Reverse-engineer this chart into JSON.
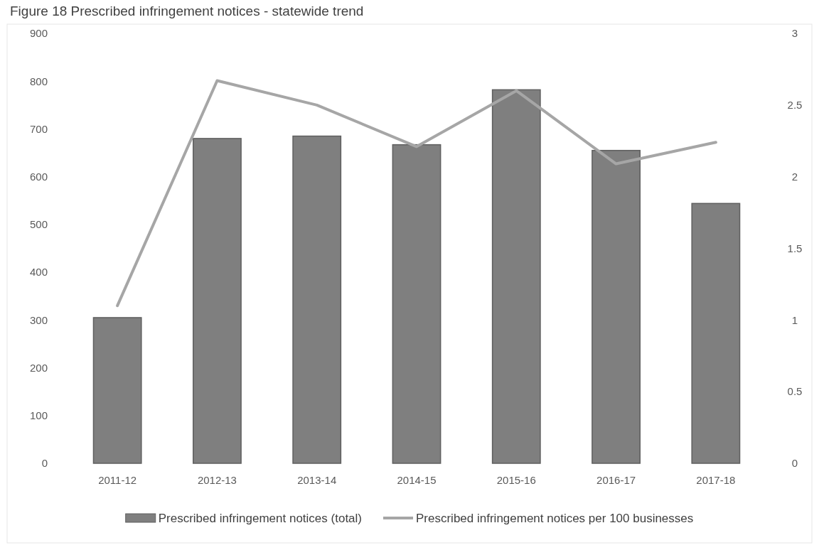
{
  "chart_data": {
    "type": "bar",
    "title": "Figure 18 Prescribed infringement notices - statewide trend",
    "categories": [
      "2011-12",
      "2012-13",
      "2013-14",
      "2014-15",
      "2015-16",
      "2016-17",
      "2017-18"
    ],
    "series": [
      {
        "name": "Prescribed infringement notices (total)",
        "color": "#7f7f7f",
        "values": [
          305,
          680,
          685,
          667,
          782,
          655,
          544
        ]
      },
      {
        "name": "Prescribed infringement notices per 100 businesses",
        "type": "line",
        "axis": "y2",
        "color": "#a6a6a6",
        "values": [
          1.1,
          2.67,
          2.5,
          2.21,
          2.6,
          2.09,
          2.24
        ]
      }
    ],
    "ylim": [
      0,
      900
    ],
    "yticks": [
      0,
      100,
      200,
      300,
      400,
      500,
      600,
      700,
      800,
      900
    ],
    "y2lim": [
      0,
      3
    ],
    "y2ticks": [
      0,
      0.5,
      1,
      1.5,
      2,
      2.5,
      3
    ],
    "legend": "bottom",
    "grid": false
  }
}
